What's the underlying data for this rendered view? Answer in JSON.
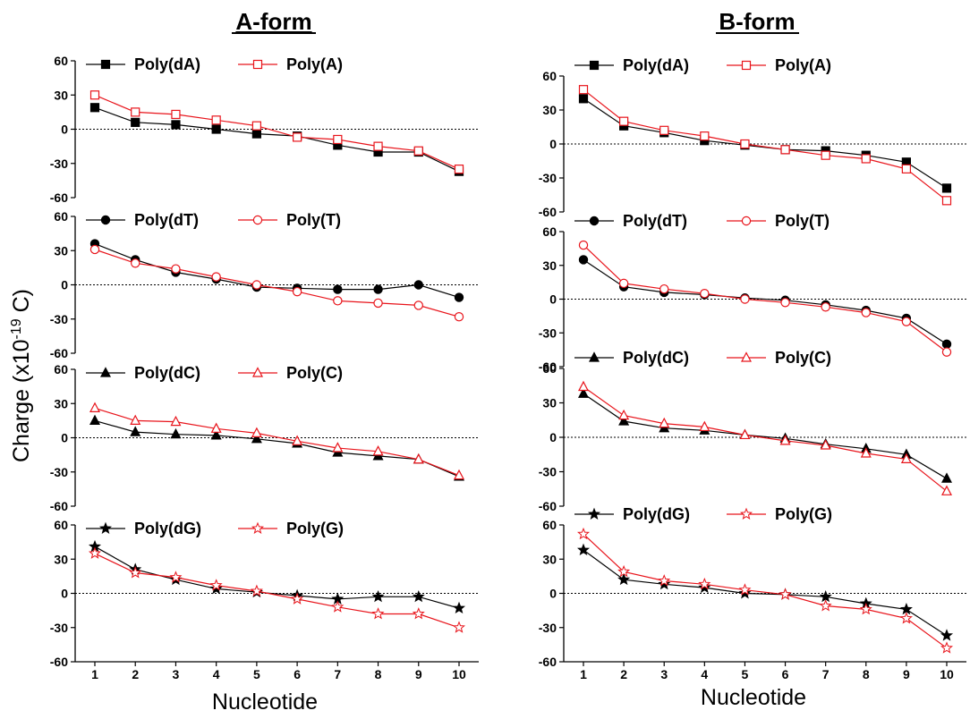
{
  "figure": {
    "column_titles": [
      "A-form",
      "B-form"
    ],
    "ylabel_main": "Charge (x10",
    "ylabel_sup": "-19",
    "ylabel_tail": " C)",
    "xlabel": "Nucleotide",
    "colors": {
      "deoxy": "#000000",
      "ribo": "#e8141b",
      "zero_line": "#000000"
    }
  },
  "chart_data": [
    {
      "type": "line",
      "column": "A-form",
      "row": 1,
      "x": [
        1,
        2,
        3,
        4,
        5,
        6,
        7,
        8,
        9,
        10
      ],
      "ylim": [
        -60,
        60
      ],
      "yticks": [
        -60,
        -30,
        0,
        30,
        60
      ],
      "xticks": [
        1,
        2,
        3,
        4,
        5,
        6,
        7,
        8,
        9,
        10
      ],
      "series": [
        {
          "name": "Poly(dA)",
          "marker": "square-filled",
          "color": "#000000",
          "values": [
            19,
            6,
            4,
            0,
            -4,
            -6,
            -14,
            -20,
            -20,
            -37
          ]
        },
        {
          "name": "Poly(A)",
          "marker": "square-open",
          "color": "#e8141b",
          "values": [
            30,
            15,
            13,
            8,
            3,
            -7,
            -9,
            -15,
            -19,
            -35
          ]
        }
      ]
    },
    {
      "type": "line",
      "column": "A-form",
      "row": 2,
      "x": [
        1,
        2,
        3,
        4,
        5,
        6,
        7,
        8,
        9,
        10
      ],
      "ylim": [
        -60,
        60
      ],
      "yticks": [
        -60,
        -30,
        0,
        30,
        60
      ],
      "xticks": [
        1,
        2,
        3,
        4,
        5,
        6,
        7,
        8,
        9,
        10
      ],
      "series": [
        {
          "name": "Poly(dT)",
          "marker": "circle-filled",
          "color": "#000000",
          "values": [
            36,
            22,
            11,
            5,
            -2,
            -3,
            -4,
            -4,
            0,
            -11
          ]
        },
        {
          "name": "Poly(T)",
          "marker": "circle-open",
          "color": "#e8141b",
          "values": [
            31,
            19,
            14,
            7,
            0,
            -6,
            -14,
            -16,
            -18,
            -28
          ]
        }
      ]
    },
    {
      "type": "line",
      "column": "A-form",
      "row": 3,
      "x": [
        1,
        2,
        3,
        4,
        5,
        6,
        7,
        8,
        9,
        10
      ],
      "ylim": [
        -60,
        60
      ],
      "yticks": [
        -60,
        -30,
        0,
        30,
        60
      ],
      "xticks": [
        1,
        2,
        3,
        4,
        5,
        6,
        7,
        8,
        9,
        10
      ],
      "series": [
        {
          "name": "Poly(dC)",
          "marker": "triangle-filled",
          "color": "#000000",
          "values": [
            15,
            5,
            3,
            2,
            -1,
            -5,
            -13,
            -16,
            -19,
            -34
          ]
        },
        {
          "name": "Poly(C)",
          "marker": "triangle-open",
          "color": "#e8141b",
          "values": [
            26,
            15,
            14,
            8,
            4,
            -3,
            -9,
            -12,
            -19,
            -33
          ]
        }
      ]
    },
    {
      "type": "line",
      "column": "A-form",
      "row": 4,
      "x": [
        1,
        2,
        3,
        4,
        5,
        6,
        7,
        8,
        9,
        10
      ],
      "ylim": [
        -60,
        60
      ],
      "yticks": [
        -60,
        -30,
        0,
        30,
        60
      ],
      "xticks": [
        1,
        2,
        3,
        4,
        5,
        6,
        7,
        8,
        9,
        10
      ],
      "series": [
        {
          "name": "Poly(dG)",
          "marker": "star-filled",
          "color": "#000000",
          "values": [
            41,
            21,
            12,
            4,
            1,
            -2,
            -5,
            -3,
            -3,
            -13
          ]
        },
        {
          "name": "Poly(G)",
          "marker": "star-open",
          "color": "#e8141b",
          "values": [
            35,
            18,
            14,
            7,
            2,
            -5,
            -12,
            -18,
            -18,
            -30
          ]
        }
      ]
    },
    {
      "type": "line",
      "column": "B-form",
      "row": 1,
      "x": [
        1,
        2,
        3,
        4,
        5,
        6,
        7,
        8,
        9,
        10
      ],
      "ylim": [
        -60,
        60
      ],
      "yticks": [
        -60,
        -30,
        0,
        30,
        60
      ],
      "xticks": [
        1,
        2,
        3,
        4,
        5,
        6,
        7,
        8,
        9,
        10
      ],
      "series": [
        {
          "name": "Poly(dA)",
          "marker": "square-filled",
          "color": "#000000",
          "values": [
            40,
            16,
            10,
            3,
            -1,
            -5,
            -6,
            -10,
            -16,
            -39
          ]
        },
        {
          "name": "Poly(A)",
          "marker": "square-open",
          "color": "#e8141b",
          "values": [
            48,
            20,
            12,
            7,
            0,
            -5,
            -10,
            -13,
            -22,
            -50
          ]
        }
      ]
    },
    {
      "type": "line",
      "column": "B-form",
      "row": 2,
      "x": [
        1,
        2,
        3,
        4,
        5,
        6,
        7,
        8,
        9,
        10
      ],
      "ylim": [
        -60,
        60
      ],
      "yticks": [
        -60,
        -30,
        0,
        30,
        60
      ],
      "xticks": [
        1,
        2,
        3,
        4,
        5,
        6,
        7,
        8,
        9,
        10
      ],
      "series": [
        {
          "name": "Poly(dT)",
          "marker": "circle-filled",
          "color": "#000000",
          "values": [
            35,
            11,
            6,
            4,
            1,
            -1,
            -5,
            -10,
            -17,
            -40
          ]
        },
        {
          "name": "Poly(T)",
          "marker": "circle-open",
          "color": "#e8141b",
          "values": [
            48,
            14,
            9,
            5,
            0,
            -3,
            -7,
            -12,
            -20,
            -47
          ]
        }
      ]
    },
    {
      "type": "line",
      "column": "B-form",
      "row": 3,
      "x": [
        1,
        2,
        3,
        4,
        5,
        6,
        7,
        8,
        9,
        10
      ],
      "ylim": [
        -60,
        60
      ],
      "yticks": [
        -60,
        -30,
        0,
        30,
        60
      ],
      "xticks": [
        1,
        2,
        3,
        4,
        5,
        6,
        7,
        8,
        9,
        10
      ],
      "series": [
        {
          "name": "Poly(dC)",
          "marker": "triangle-filled",
          "color": "#000000",
          "values": [
            38,
            14,
            8,
            6,
            2,
            -1,
            -6,
            -10,
            -15,
            -36
          ]
        },
        {
          "name": "Poly(C)",
          "marker": "triangle-open",
          "color": "#e8141b",
          "values": [
            44,
            19,
            12,
            9,
            2,
            -3,
            -7,
            -14,
            -19,
            -47
          ]
        }
      ]
    },
    {
      "type": "line",
      "column": "B-form",
      "row": 4,
      "x": [
        1,
        2,
        3,
        4,
        5,
        6,
        7,
        8,
        9,
        10
      ],
      "ylim": [
        -60,
        60
      ],
      "yticks": [
        -60,
        -30,
        0,
        30,
        60
      ],
      "xticks": [
        1,
        2,
        3,
        4,
        5,
        6,
        7,
        8,
        9,
        10
      ],
      "series": [
        {
          "name": "Poly(dG)",
          "marker": "star-filled",
          "color": "#000000",
          "values": [
            38,
            12,
            8,
            5,
            0,
            -1,
            -3,
            -9,
            -14,
            -37
          ]
        },
        {
          "name": "Poly(G)",
          "marker": "star-open",
          "color": "#e8141b",
          "values": [
            52,
            19,
            11,
            8,
            3,
            -1,
            -11,
            -14,
            -22,
            -48
          ]
        }
      ]
    }
  ]
}
